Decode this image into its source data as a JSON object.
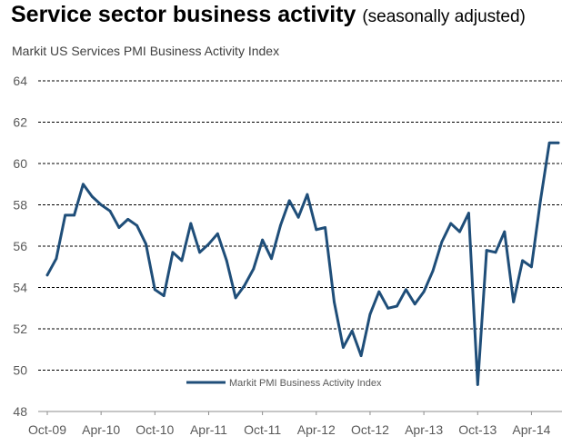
{
  "header": {
    "title": "Service sector business activity",
    "title_note": "(seasonally adjusted)"
  },
  "chart_data": {
    "type": "line",
    "title": "Markit US Services PMI Business Activity Index",
    "xlabel": "",
    "ylabel": "",
    "ylim": [
      48,
      64
    ],
    "yticks": [
      48,
      50,
      52,
      54,
      56,
      58,
      60,
      62,
      64
    ],
    "xticks": [
      "Oct-09",
      "Apr-10",
      "Oct-10",
      "Apr-11",
      "Oct-11",
      "Apr-12",
      "Oct-12",
      "Apr-13",
      "Oct-13",
      "Apr-14"
    ],
    "x_start": "Oct-09",
    "x_end": "Jun-14",
    "grid": true,
    "legend": "bottom-left",
    "color": "#1f4e79",
    "series": [
      {
        "name": "Markit PMI Business Activity Index",
        "values": [
          54.6,
          55.4,
          57.5,
          57.5,
          59.0,
          58.4,
          58.0,
          57.7,
          56.9,
          57.3,
          57.0,
          56.1,
          53.9,
          53.6,
          55.7,
          55.3,
          57.1,
          55.7,
          56.1,
          56.6,
          55.3,
          53.5,
          54.1,
          54.9,
          56.3,
          55.4,
          57.0,
          58.2,
          57.4,
          58.5,
          56.8,
          56.9,
          53.3,
          51.1,
          51.9,
          50.7,
          52.7,
          53.8,
          53.0,
          53.1,
          53.9,
          53.2,
          53.8,
          54.8,
          56.2,
          57.1,
          56.7,
          57.6,
          49.3,
          55.8,
          55.7,
          56.7,
          53.3,
          55.3,
          55.0,
          58.2,
          61.0,
          61.0
        ]
      }
    ]
  }
}
